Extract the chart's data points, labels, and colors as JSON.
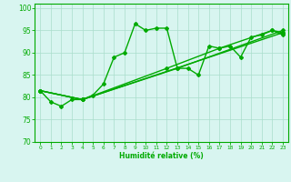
{
  "title": "",
  "xlabel": "Humidité relative (%)",
  "ylabel": "",
  "xlim": [
    -0.5,
    23.5
  ],
  "ylim": [
    70,
    101
  ],
  "yticks": [
    70,
    75,
    80,
    85,
    90,
    95,
    100
  ],
  "xticks": [
    0,
    1,
    2,
    3,
    4,
    5,
    6,
    7,
    8,
    9,
    10,
    11,
    12,
    13,
    14,
    15,
    16,
    17,
    18,
    19,
    20,
    21,
    22,
    23
  ],
  "bg_color": "#d8f5f0",
  "grid_color": "#aaddcc",
  "line_color": "#00aa00",
  "marker": "D",
  "markersize": 2,
  "linewidth": 1.0,
  "series": [
    [
      0,
      81.5
    ],
    [
      1,
      79.0
    ],
    [
      2,
      78.0
    ],
    [
      3,
      79.5
    ],
    [
      4,
      79.5
    ],
    [
      5,
      80.5
    ],
    [
      6,
      83.0
    ],
    [
      7,
      89.0
    ],
    [
      8,
      90.0
    ],
    [
      9,
      96.5
    ],
    [
      10,
      95.0
    ],
    [
      11,
      95.5
    ],
    [
      12,
      95.5
    ],
    [
      13,
      86.5
    ],
    [
      14,
      86.5
    ],
    [
      15,
      85.0
    ],
    [
      16,
      91.5
    ],
    [
      17,
      91.0
    ],
    [
      18,
      91.5
    ],
    [
      19,
      89.0
    ],
    [
      20,
      93.5
    ],
    [
      21,
      94.0
    ],
    [
      22,
      95.0
    ],
    [
      23,
      94.0
    ]
  ],
  "series2": [
    [
      0,
      81.5
    ],
    [
      4,
      79.5
    ],
    [
      23,
      94.5
    ]
  ],
  "series3": [
    [
      0,
      81.5
    ],
    [
      4,
      79.5
    ],
    [
      13,
      86.5
    ],
    [
      23,
      95.0
    ]
  ],
  "series4": [
    [
      0,
      81.5
    ],
    [
      4,
      79.5
    ],
    [
      12,
      86.5
    ],
    [
      17,
      91.0
    ],
    [
      22,
      95.0
    ],
    [
      23,
      94.5
    ]
  ]
}
